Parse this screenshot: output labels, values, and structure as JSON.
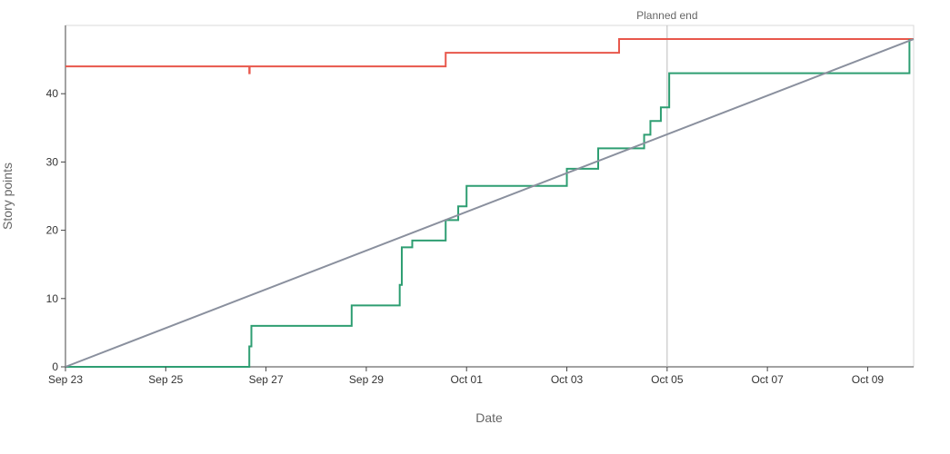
{
  "chart_data": {
    "type": "line",
    "title": "",
    "xlabel": "Date",
    "ylabel": "Story points",
    "x_type": "date",
    "xlim": [
      "2023-09-23T00:00",
      "2023-10-09T22:00"
    ],
    "ylim": [
      0,
      50
    ],
    "x_ticks": [
      {
        "x": "2023-09-23",
        "label": "Sep 23"
      },
      {
        "x": "2023-09-25",
        "label": "Sep 25"
      },
      {
        "x": "2023-09-27",
        "label": "Sep 27"
      },
      {
        "x": "2023-09-29",
        "label": "Sep 29"
      },
      {
        "x": "2023-10-01",
        "label": "Oct 01"
      },
      {
        "x": "2023-10-03",
        "label": "Oct 03"
      },
      {
        "x": "2023-10-05",
        "label": "Oct 05"
      },
      {
        "x": "2023-10-07",
        "label": "Oct 07"
      },
      {
        "x": "2023-10-09",
        "label": "Oct 09"
      }
    ],
    "y_ticks": [
      {
        "y": 0,
        "label": "0"
      },
      {
        "y": 10,
        "label": "10"
      },
      {
        "y": 20,
        "label": "20"
      },
      {
        "y": 30,
        "label": "30"
      },
      {
        "y": 40,
        "label": "40"
      }
    ],
    "grid": false,
    "legend": "none",
    "annotations": [
      {
        "type": "vline",
        "x": "2023-10-05T00:00",
        "label": "Planned end",
        "color": "#bbbbbb"
      }
    ],
    "series": [
      {
        "color": "#e8574b",
        "step": true,
        "points": [
          {
            "x": "2023-09-23T00:00",
            "y": 44
          },
          {
            "x": "2023-09-26T16:00",
            "y": 44
          },
          {
            "x": "2023-09-26T16:00",
            "y": 43
          },
          {
            "x": "2023-09-26T16:10",
            "y": 43
          },
          {
            "x": "2023-09-26T16:10",
            "y": 44
          },
          {
            "x": "2023-09-30T14:00",
            "y": 44
          },
          {
            "x": "2023-09-30T14:00",
            "y": 46
          },
          {
            "x": "2023-10-04T01:00",
            "y": 46
          },
          {
            "x": "2023-10-04T01:00",
            "y": 48
          },
          {
            "x": "2023-10-09T22:00",
            "y": 48
          }
        ]
      },
      {
        "color": "#2e9e72",
        "step": true,
        "points": [
          {
            "x": "2023-09-23T00:00",
            "y": 0
          },
          {
            "x": "2023-09-26T16:00",
            "y": 0
          },
          {
            "x": "2023-09-26T16:00",
            "y": 3
          },
          {
            "x": "2023-09-26T17:00",
            "y": 3
          },
          {
            "x": "2023-09-26T17:00",
            "y": 6
          },
          {
            "x": "2023-09-28T17:00",
            "y": 6
          },
          {
            "x": "2023-09-28T17:00",
            "y": 9
          },
          {
            "x": "2023-09-29T16:00",
            "y": 9
          },
          {
            "x": "2023-09-29T16:00",
            "y": 12
          },
          {
            "x": "2023-09-29T17:00",
            "y": 12
          },
          {
            "x": "2023-09-29T17:00",
            "y": 17.5
          },
          {
            "x": "2023-09-29T22:00",
            "y": 17.5
          },
          {
            "x": "2023-09-29T22:00",
            "y": 18.5
          },
          {
            "x": "2023-09-30T14:00",
            "y": 18.5
          },
          {
            "x": "2023-09-30T14:00",
            "y": 21.5
          },
          {
            "x": "2023-09-30T20:00",
            "y": 21.5
          },
          {
            "x": "2023-09-30T20:00",
            "y": 23.5
          },
          {
            "x": "2023-10-01T00:00",
            "y": 23.5
          },
          {
            "x": "2023-10-01T00:00",
            "y": 26.5
          },
          {
            "x": "2023-10-03T00:00",
            "y": 26.5
          },
          {
            "x": "2023-10-03T00:00",
            "y": 29
          },
          {
            "x": "2023-10-03T15:00",
            "y": 29
          },
          {
            "x": "2023-10-03T15:00",
            "y": 32
          },
          {
            "x": "2023-10-04T13:00",
            "y": 32
          },
          {
            "x": "2023-10-04T13:00",
            "y": 34
          },
          {
            "x": "2023-10-04T16:00",
            "y": 34
          },
          {
            "x": "2023-10-04T16:00",
            "y": 36
          },
          {
            "x": "2023-10-04T21:00",
            "y": 36
          },
          {
            "x": "2023-10-04T21:00",
            "y": 38
          },
          {
            "x": "2023-10-05T01:00",
            "y": 38
          },
          {
            "x": "2023-10-05T01:00",
            "y": 43
          },
          {
            "x": "2023-10-09T20:00",
            "y": 43
          },
          {
            "x": "2023-10-09T20:00",
            "y": 48
          }
        ]
      },
      {
        "color": "#8a909e",
        "step": false,
        "points": [
          {
            "x": "2023-09-23T00:00",
            "y": 0
          },
          {
            "x": "2023-10-09T22:00",
            "y": 48
          }
        ]
      }
    ]
  }
}
